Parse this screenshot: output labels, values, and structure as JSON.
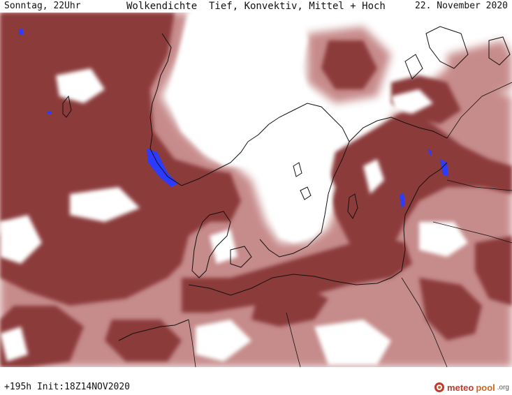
{
  "header": {
    "left": "Sonntag, 22Uhr",
    "title": "Wolkendichte  Tief, Konvektiv, Mittel + Hoch",
    "right": "22. November 2020"
  },
  "footer": {
    "run_info": "+195h Init:18Z14NOV2020"
  },
  "brand": {
    "part1": "meteo",
    "part2": "pool",
    "part3": ".org"
  },
  "colors": {
    "cloud_dark": "#8c3b3b",
    "cloud_mid": "#a65959",
    "cloud_light": "#c48585",
    "water": "#2b3bff",
    "coast": "#111111"
  }
}
